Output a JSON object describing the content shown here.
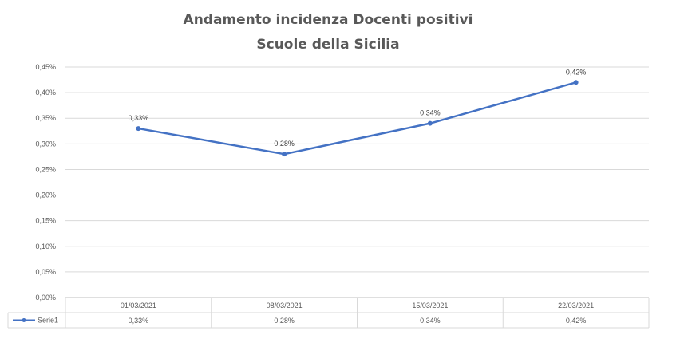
{
  "chart_data": {
    "type": "line",
    "title": "Andamento incidenza Docenti positivi",
    "subtitle": "Scuole della Sicilia",
    "categories": [
      "01/03/2021",
      "08/03/2021",
      "15/03/2021",
      "22/03/2021"
    ],
    "series": [
      {
        "name": "Serie1",
        "values": [
          0.33,
          0.28,
          0.34,
          0.42
        ],
        "data_labels": [
          "0,33%",
          "0,28%",
          "0,34%",
          "0,42%"
        ]
      }
    ],
    "y_ticks": [
      "0,00%",
      "0,05%",
      "0,10%",
      "0,15%",
      "0,20%",
      "0,25%",
      "0,30%",
      "0,35%",
      "0,40%",
      "0,45%"
    ],
    "ylim": [
      0,
      0.45
    ],
    "y_unit": "%",
    "grid": true,
    "legend": "data-table-below",
    "colors": {
      "line": "#4472c4",
      "grid": "#d9d9d9",
      "text": "#595959",
      "title": "#595959"
    }
  }
}
